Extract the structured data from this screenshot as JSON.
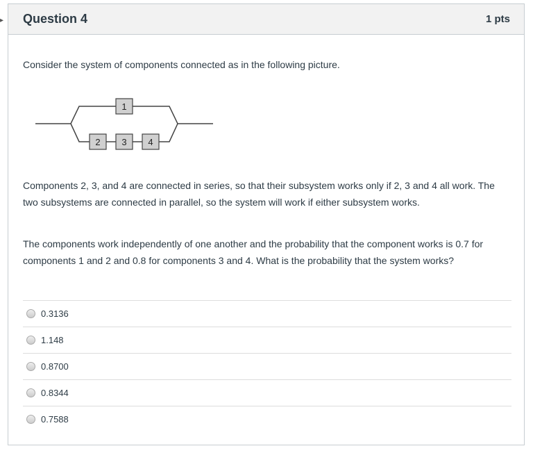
{
  "question": {
    "title": "Question 4",
    "points": "1 pts"
  },
  "intro": "Consider the system of components connected as in the following picture.",
  "diagram": {
    "components": [
      "1",
      "2",
      "3",
      "4"
    ]
  },
  "paragraph1": "Components 2, 3, and 4 are connected in series, so that their subsystem works only if 2, 3 and 4 all work. The two subsystems are connected in parallel, so the system will work if either subsystem works.",
  "paragraph2": "The components work independently of one another and the probability that the component works is 0.7 for components 1 and 2 and 0.8 for components 3 and 4. What is the probability that the system works?",
  "options": [
    "0.3136",
    "1.148",
    "0.8700",
    "0.8344",
    "0.7588"
  ]
}
